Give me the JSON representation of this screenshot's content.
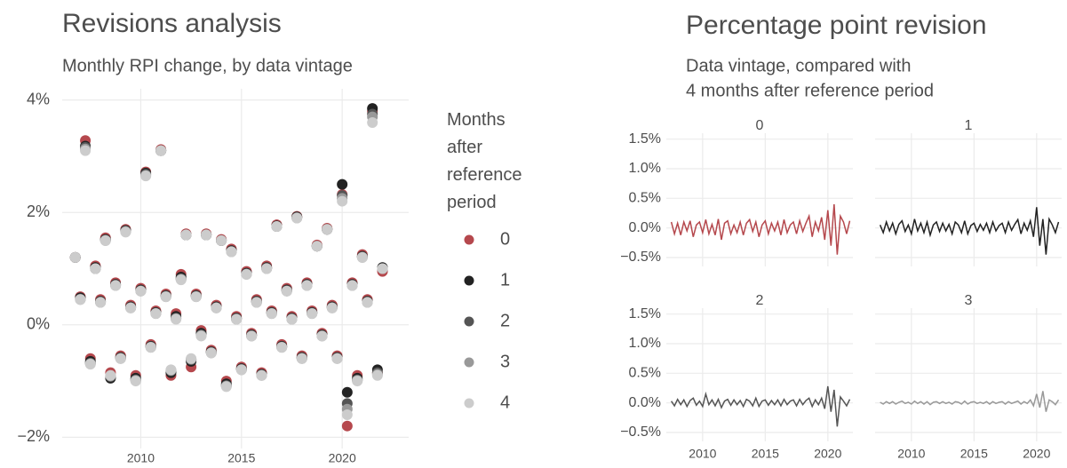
{
  "chart_data": [
    {
      "type": "scatter",
      "title": "Revisions analysis",
      "subtitle": "Monthly RPI change, by data vintage",
      "legend_title": "Months after reference period",
      "x": [
        2006.75,
        2007.0,
        2007.25,
        2007.5,
        2007.75,
        2008.0,
        2008.25,
        2008.5,
        2008.75,
        2009.0,
        2009.25,
        2009.5,
        2009.75,
        2010.0,
        2010.25,
        2010.5,
        2010.75,
        2011.0,
        2011.25,
        2011.5,
        2011.75,
        2012.0,
        2012.25,
        2012.5,
        2012.75,
        2013.0,
        2013.25,
        2013.5,
        2013.75,
        2014.0,
        2014.25,
        2014.5,
        2014.75,
        2015.0,
        2015.25,
        2015.5,
        2015.75,
        2016.0,
        2016.25,
        2016.5,
        2016.75,
        2017.0,
        2017.25,
        2017.5,
        2017.75,
        2018.0,
        2018.25,
        2018.5,
        2018.75,
        2019.0,
        2019.25,
        2019.5,
        2019.75,
        2020.0,
        2020.25,
        2020.5,
        2020.75,
        2021.0,
        2021.25,
        2021.5,
        2021.75,
        2022.0
      ],
      "series": [
        {
          "name": "0",
          "color": "#b5484d",
          "values": [
            1.2,
            0.5,
            3.28,
            -0.6,
            1.05,
            0.45,
            1.55,
            -0.85,
            0.75,
            -0.55,
            1.7,
            0.35,
            -0.9,
            0.65,
            2.72,
            -0.35,
            0.25,
            3.12,
            0.55,
            -0.9,
            0.2,
            0.9,
            1.62,
            -0.75,
            0.55,
            -0.1,
            1.62,
            -0.45,
            0.35,
            1.52,
            -1.0,
            1.35,
            0.15,
            -0.75,
            0.95,
            -0.15,
            0.45,
            -0.85,
            1.05,
            0.25,
            1.78,
            -0.35,
            0.65,
            0.15,
            1.93,
            -0.55,
            0.75,
            0.25,
            1.42,
            -0.15,
            1.72,
            0.35,
            -0.55,
            2.32,
            -1.8,
            0.75,
            -0.9,
            1.25,
            0.45,
            3.8,
            -0.85,
            0.95
          ]
        },
        {
          "name": "1",
          "color": "#222222",
          "values": [
            1.2,
            0.48,
            3.18,
            -0.65,
            1.02,
            0.42,
            1.52,
            -0.95,
            0.72,
            -0.58,
            1.68,
            0.32,
            -0.95,
            0.62,
            2.7,
            -0.38,
            0.22,
            3.1,
            0.52,
            -0.85,
            0.15,
            0.85,
            1.6,
            -0.65,
            0.52,
            -0.15,
            1.6,
            -0.48,
            0.32,
            1.5,
            -1.05,
            1.32,
            0.12,
            -0.78,
            0.92,
            -0.18,
            0.42,
            -0.88,
            1.02,
            0.22,
            1.76,
            -0.38,
            0.62,
            0.12,
            1.92,
            -0.58,
            0.72,
            0.22,
            1.4,
            -0.18,
            1.7,
            0.32,
            -0.58,
            2.5,
            -1.2,
            0.72,
            -0.95,
            1.22,
            0.42,
            3.85,
            -0.8,
            1.02
          ]
        },
        {
          "name": "2",
          "color": "#555555",
          "values": [
            1.2,
            0.46,
            3.16,
            -0.68,
            1.0,
            0.41,
            1.51,
            -0.92,
            0.71,
            -0.59,
            1.67,
            0.31,
            -0.98,
            0.61,
            2.68,
            -0.39,
            0.21,
            3.1,
            0.51,
            -0.82,
            0.12,
            0.82,
            1.6,
            -0.62,
            0.51,
            -0.18,
            1.6,
            -0.49,
            0.31,
            1.5,
            -1.08,
            1.31,
            0.11,
            -0.79,
            0.91,
            -0.19,
            0.41,
            -0.89,
            1.01,
            0.21,
            1.75,
            -0.39,
            0.61,
            0.11,
            1.91,
            -0.59,
            0.71,
            0.21,
            1.4,
            -0.19,
            1.7,
            0.31,
            -0.59,
            2.3,
            -1.4,
            0.71,
            -0.98,
            1.21,
            0.41,
            3.75,
            -0.85,
            1.0
          ]
        },
        {
          "name": "3",
          "color": "#999999",
          "values": [
            1.2,
            0.45,
            3.13,
            -0.69,
            1.0,
            0.4,
            1.5,
            -0.91,
            0.7,
            -0.6,
            1.66,
            0.3,
            -0.99,
            0.6,
            2.66,
            -0.4,
            0.2,
            3.1,
            0.5,
            -0.81,
            0.11,
            0.81,
            1.6,
            -0.61,
            0.5,
            -0.19,
            1.6,
            -0.5,
            0.3,
            1.5,
            -1.09,
            1.3,
            0.1,
            -0.8,
            0.9,
            -0.2,
            0.4,
            -0.9,
            1.0,
            0.2,
            1.75,
            -0.4,
            0.6,
            0.1,
            1.9,
            -0.6,
            0.7,
            0.2,
            1.4,
            -0.2,
            1.7,
            0.3,
            -0.6,
            2.25,
            -1.5,
            0.7,
            -0.99,
            1.2,
            0.4,
            3.7,
            -0.88,
            1.0
          ]
        },
        {
          "name": "4",
          "color": "#cccccc",
          "values": [
            1.2,
            0.45,
            3.1,
            -0.7,
            1.0,
            0.4,
            1.5,
            -0.9,
            0.7,
            -0.6,
            1.65,
            0.3,
            -1.0,
            0.6,
            2.65,
            -0.4,
            0.2,
            3.1,
            0.5,
            -0.8,
            0.1,
            0.8,
            1.6,
            -0.6,
            0.5,
            -0.2,
            1.6,
            -0.5,
            0.3,
            1.5,
            -1.1,
            1.3,
            0.1,
            -0.8,
            0.9,
            -0.2,
            0.4,
            -0.9,
            1.0,
            0.2,
            1.75,
            -0.4,
            0.6,
            0.1,
            1.9,
            -0.6,
            0.7,
            0.2,
            1.4,
            -0.2,
            1.7,
            0.3,
            -0.6,
            2.2,
            -1.6,
            0.7,
            -1.0,
            1.2,
            0.4,
            3.6,
            -0.9,
            1.0
          ]
        }
      ],
      "xlim": [
        2006.1,
        2023.3
      ],
      "xticks": [
        2010,
        2015,
        2020
      ],
      "ylim": [
        -2.2,
        4.2
      ],
      "yticks": [
        {
          "value": -2,
          "label": "−2%"
        },
        {
          "value": 0,
          "label": "0%"
        },
        {
          "value": 2,
          "label": "2%"
        },
        {
          "value": 4,
          "label": "4%"
        }
      ],
      "grid": true
    },
    {
      "type": "line",
      "title": "Percentage point revision",
      "subtitle_lines": [
        "Data vintage, compared with",
        "4 months after reference period"
      ],
      "x": [
        2007.5,
        2007.75,
        2008.0,
        2008.25,
        2008.5,
        2008.75,
        2009.0,
        2009.25,
        2009.5,
        2009.75,
        2010.0,
        2010.25,
        2010.5,
        2010.75,
        2011.0,
        2011.25,
        2011.5,
        2011.75,
        2012.0,
        2012.25,
        2012.5,
        2012.75,
        2013.0,
        2013.25,
        2013.5,
        2013.75,
        2014.0,
        2014.25,
        2014.5,
        2014.75,
        2015.0,
        2015.25,
        2015.5,
        2015.75,
        2016.0,
        2016.25,
        2016.5,
        2016.75,
        2017.0,
        2017.25,
        2017.5,
        2017.75,
        2018.0,
        2018.25,
        2018.5,
        2018.75,
        2019.0,
        2019.25,
        2019.5,
        2019.75,
        2020.0,
        2020.25,
        2020.5,
        2020.75,
        2021.0,
        2021.25,
        2021.5,
        2021.75
      ],
      "facets": [
        {
          "name": "0",
          "color": "#b5484d",
          "values": [
            0.1,
            -0.1,
            0.08,
            -0.12,
            0.1,
            -0.05,
            0.12,
            -0.15,
            0.05,
            0.1,
            -0.08,
            0.14,
            -0.1,
            0.06,
            -0.12,
            0.15,
            -0.2,
            0.08,
            0.12,
            -0.1,
            0.05,
            -0.08,
            0.1,
            -0.12,
            0.08,
            0.14,
            -0.06,
            0.1,
            -0.15,
            0.05,
            0.12,
            -0.1,
            0.08,
            -0.05,
            0.1,
            -0.12,
            0.14,
            -0.08,
            0.05,
            0.1,
            -0.1,
            0.12,
            -0.06,
            0.08,
            0.2,
            -0.15,
            0.1,
            -0.05,
            0.18,
            -0.2,
            0.3,
            -0.3,
            0.4,
            -0.45,
            0.2,
            0.1,
            -0.1,
            0.12
          ]
        },
        {
          "name": "1",
          "color": "#222222",
          "values": [
            0.05,
            -0.08,
            0.1,
            -0.05,
            0.08,
            -0.1,
            0.06,
            0.12,
            -0.06,
            0.05,
            -0.1,
            0.15,
            -0.05,
            0.08,
            -0.08,
            0.1,
            -0.12,
            0.05,
            0.1,
            -0.06,
            0.08,
            -0.05,
            0.06,
            -0.1,
            0.1,
            0.05,
            -0.08,
            0.12,
            -0.1,
            0.04,
            0.08,
            -0.06,
            0.06,
            -0.04,
            0.08,
            -0.08,
            0.1,
            -0.05,
            0.04,
            0.08,
            -0.08,
            0.1,
            -0.04,
            0.06,
            0.14,
            -0.1,
            0.08,
            -0.04,
            0.12,
            -0.15,
            0.35,
            -0.3,
            0.15,
            -0.45,
            0.15,
            0.05,
            -0.08,
            0.1
          ]
        },
        {
          "name": "2",
          "color": "#555555",
          "values": [
            0.03,
            -0.05,
            0.06,
            -0.03,
            0.05,
            -0.06,
            0.04,
            0.08,
            -0.04,
            0.03,
            -0.06,
            0.15,
            -0.03,
            0.05,
            -0.05,
            0.06,
            -0.08,
            0.03,
            0.06,
            -0.04,
            0.05,
            -0.03,
            0.04,
            -0.06,
            0.06,
            0.03,
            -0.05,
            0.08,
            -0.06,
            0.03,
            0.05,
            -0.04,
            0.04,
            -0.03,
            0.05,
            -0.05,
            0.06,
            -0.03,
            0.03,
            0.05,
            -0.05,
            0.06,
            -0.03,
            0.04,
            0.08,
            -0.06,
            0.05,
            -0.03,
            0.08,
            -0.1,
            0.28,
            -0.15,
            0.22,
            -0.4,
            0.1,
            0.03,
            -0.05,
            0.06
          ]
        },
        {
          "name": "3",
          "color": "#999999",
          "values": [
            0.01,
            -0.02,
            0.02,
            -0.01,
            0.02,
            -0.02,
            0.01,
            0.03,
            -0.01,
            0.01,
            -0.02,
            0.03,
            -0.01,
            0.02,
            -0.02,
            0.02,
            -0.03,
            0.01,
            0.02,
            -0.01,
            0.02,
            -0.01,
            0.01,
            -0.02,
            0.02,
            0.01,
            -0.02,
            0.03,
            -0.02,
            0.01,
            0.02,
            -0.01,
            0.01,
            -0.01,
            0.02,
            -0.02,
            0.02,
            -0.01,
            0.01,
            0.02,
            -0.02,
            0.02,
            -0.01,
            0.01,
            0.03,
            -0.02,
            0.02,
            -0.01,
            0.05,
            -0.05,
            0.15,
            -0.08,
            0.2,
            -0.15,
            0.05,
            0.02,
            -0.03,
            0.05
          ]
        }
      ],
      "xlim": [
        2007.1,
        2022.0
      ],
      "xticks": [
        2010,
        2015,
        2020
      ],
      "ylim": [
        -0.65,
        1.6
      ],
      "yticks": [
        {
          "value": -0.5,
          "label": "−0.5%"
        },
        {
          "value": 0,
          "label": "0.0%"
        },
        {
          "value": 0.5,
          "label": "0.5%"
        },
        {
          "value": 1,
          "label": "1.0%"
        },
        {
          "value": 1.5,
          "label": "1.5%"
        }
      ],
      "grid": true
    }
  ]
}
